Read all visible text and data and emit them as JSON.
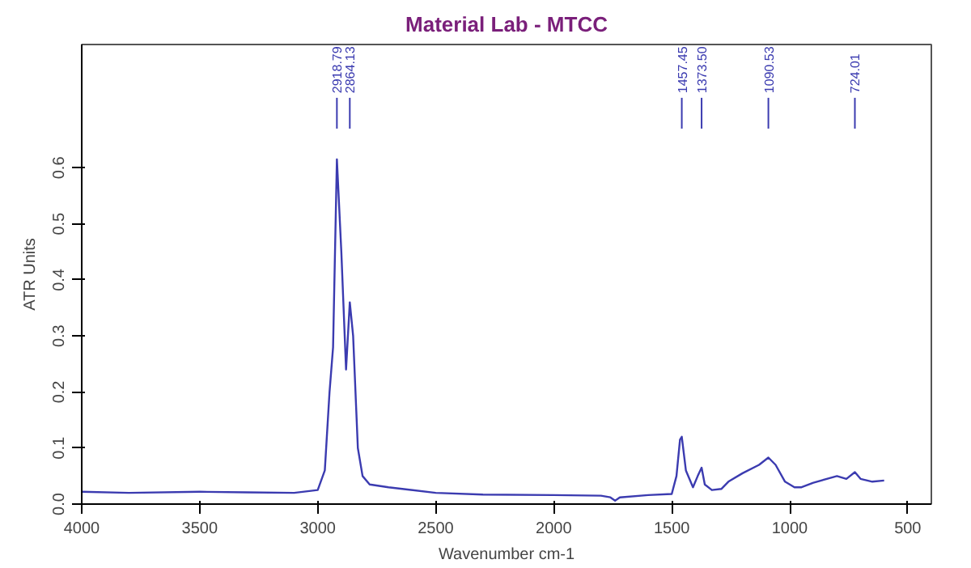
{
  "chart_data": {
    "type": "line",
    "title": "Material Lab - MTCC",
    "xlabel": "Wavenumber cm-1",
    "ylabel": "ATR Units",
    "xlim": [
      4000,
      400
    ],
    "ylim": [
      0,
      0.82
    ],
    "xticks": [
      4000,
      3500,
      3000,
      2500,
      2000,
      1500,
      1000,
      500
    ],
    "yticks": [
      {
        "value": 0,
        "label": "0.0"
      },
      0.1,
      0.2,
      0.3,
      0.4,
      0.5,
      0.6
    ],
    "grid": false,
    "marker": "none",
    "line_style": "solid",
    "x": [
      4000,
      3800,
      3500,
      3300,
      3100,
      3000,
      2970,
      2950,
      2935,
      2918.79,
      2900,
      2880,
      2864.13,
      2850,
      2830,
      2810,
      2780,
      2700,
      2500,
      2300,
      2000,
      1800,
      1760,
      1740,
      1720,
      1600,
      1500,
      1480,
      1465,
      1457.45,
      1440,
      1410,
      1390,
      1373.5,
      1360,
      1330,
      1290,
      1260,
      1200,
      1130,
      1090.53,
      1060,
      1020,
      980,
      950,
      900,
      800,
      760,
      724.01,
      700,
      650,
      600
    ],
    "series": [
      {
        "color": "#3b3bb0",
        "values": [
          0.022,
          0.02,
          0.022,
          0.021,
          0.02,
          0.025,
          0.06,
          0.2,
          0.28,
          0.615,
          0.45,
          0.24,
          0.36,
          0.3,
          0.1,
          0.05,
          0.035,
          0.03,
          0.02,
          0.017,
          0.016,
          0.015,
          0.012,
          0.006,
          0.012,
          0.016,
          0.018,
          0.05,
          0.115,
          0.12,
          0.06,
          0.03,
          0.05,
          0.065,
          0.035,
          0.025,
          0.027,
          0.04,
          0.055,
          0.07,
          0.083,
          0.07,
          0.04,
          0.03,
          0.03,
          0.038,
          0.05,
          0.045,
          0.057,
          0.045,
          0.04,
          0.042
        ]
      }
    ],
    "ref_lines": [
      {
        "axis": "x",
        "value": 2918.79,
        "label": "2918.79",
        "color": "#3b3bb0"
      },
      {
        "axis": "x",
        "value": 2864.13,
        "label": "2864.13",
        "color": "#3b3bb0"
      },
      {
        "axis": "x",
        "value": 1457.45,
        "label": "1457.45",
        "color": "#3b3bb0"
      },
      {
        "axis": "x",
        "value": 1373.5,
        "label": "1373.50",
        "color": "#3b3bb0"
      },
      {
        "axis": "x",
        "value": 1090.53,
        "label": "1090.53",
        "color": "#3b3bb0"
      },
      {
        "axis": "x",
        "value": 724.01,
        "label": "724.01",
        "color": "#3b3bb0"
      }
    ]
  }
}
